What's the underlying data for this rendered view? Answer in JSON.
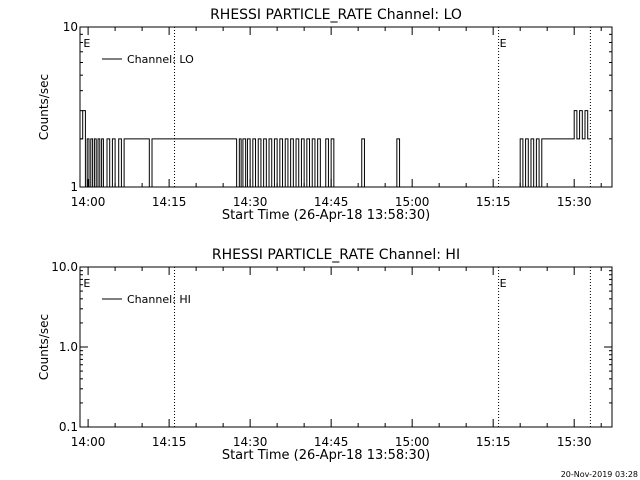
{
  "footer_timestamp": "20-Nov-2019 03:28",
  "chart_data": [
    {
      "type": "line",
      "title": "RHESSI PARTICLE_RATE Channel: LO",
      "xlabel": "Start Time (26-Apr-18 13:58:30)",
      "ylabel": "Counts/sec",
      "yscale": "log",
      "ylim": [
        1,
        10
      ],
      "y_tick_labels": [
        "1",
        "10"
      ],
      "x_tick_labels": [
        "14:00",
        "14:15",
        "14:30",
        "14:45",
        "15:00",
        "15:15",
        "15:30"
      ],
      "xlim": [
        "13:58:30",
        "15:37:00"
      ],
      "legend": {
        "position": "top-left",
        "entries": [
          "Channel: LO"
        ]
      },
      "markers": [
        {
          "time": "13:59:30",
          "label": "E"
        },
        {
          "time": "15:16:00",
          "label": "E"
        }
      ],
      "vlines": [
        "14:16:00",
        "15:16:00",
        "15:33:00"
      ],
      "series": [
        {
          "name": "Channel: LO",
          "color": "#000000",
          "step": true,
          "x": [
            "13:58:30",
            "13:59:00",
            "13:59:30",
            "13:59:50",
            "14:00:10",
            "14:00:30",
            "14:00:50",
            "14:01:10",
            "14:01:30",
            "14:01:50",
            "14:02:10",
            "14:02:30",
            "14:02:50",
            "14:03:30",
            "14:04:00",
            "14:04:30",
            "14:05:00",
            "14:05:40",
            "14:06:10",
            "14:06:40",
            "14:11:20",
            "14:11:50",
            "14:27:30",
            "14:28:00",
            "14:28:20",
            "14:28:40",
            "14:29:10",
            "14:29:30",
            "14:30:00",
            "14:30:30",
            "14:31:00",
            "14:31:30",
            "14:32:00",
            "14:32:30",
            "14:33:00",
            "14:33:30",
            "14:34:00",
            "14:34:30",
            "14:35:00",
            "14:35:30",
            "14:36:00",
            "14:36:30",
            "14:37:00",
            "14:37:30",
            "14:38:00",
            "14:38:30",
            "14:39:00",
            "14:39:30",
            "14:40:00",
            "14:40:30",
            "14:41:00",
            "14:41:30",
            "14:42:00",
            "14:42:30",
            "14:43:00",
            "14:44:00",
            "14:44:30",
            "14:45:00",
            "14:45:30",
            "14:50:40",
            "14:51:10",
            "14:57:10",
            "14:57:40",
            "15:20:00",
            "15:20:30",
            "15:21:00",
            "15:21:30",
            "15:22:00",
            "15:22:30",
            "15:23:00",
            "15:23:30",
            "15:24:00",
            "15:29:30",
            "15:30:00",
            "15:30:30",
            "15:31:00",
            "15:31:30",
            "15:32:00",
            "15:32:30"
          ],
          "values": [
            2,
            3,
            1,
            2,
            1,
            2,
            1,
            2,
            1,
            2,
            1,
            2,
            1,
            2,
            1,
            2,
            1,
            2,
            1,
            2,
            1,
            2,
            1,
            2,
            1,
            2,
            1,
            2,
            1,
            2,
            1,
            2,
            1,
            2,
            1,
            2,
            1,
            2,
            1,
            2,
            1,
            2,
            1,
            2,
            1,
            2,
            1,
            2,
            1,
            2,
            1,
            2,
            1,
            2,
            1,
            2,
            1,
            2,
            1,
            2,
            1,
            2,
            1,
            2,
            1,
            2,
            1,
            2,
            1,
            2,
            1,
            2,
            2,
            3,
            2,
            3,
            2,
            3,
            2
          ]
        }
      ]
    },
    {
      "type": "line",
      "title": "RHESSI PARTICLE_RATE Channel: HI",
      "xlabel": "Start Time (26-Apr-18 13:58:30)",
      "ylabel": "Counts/sec",
      "yscale": "log",
      "ylim": [
        0.1,
        10
      ],
      "y_tick_labels": [
        "0.1",
        "1.0",
        "10.0"
      ],
      "x_tick_labels": [
        "14:00",
        "14:15",
        "14:30",
        "14:45",
        "15:00",
        "15:15",
        "15:30"
      ],
      "xlim": [
        "13:58:30",
        "15:37:00"
      ],
      "legend": {
        "position": "top-left",
        "entries": [
          "Channel: HI"
        ]
      },
      "markers": [
        {
          "time": "13:59:30",
          "label": "E"
        },
        {
          "time": "15:16:00",
          "label": "E"
        }
      ],
      "vlines": [
        "14:16:00",
        "15:16:00",
        "15:33:00"
      ],
      "series": [
        {
          "name": "Channel: HI",
          "color": "#000000",
          "step": true,
          "x": [],
          "values": []
        }
      ]
    }
  ]
}
